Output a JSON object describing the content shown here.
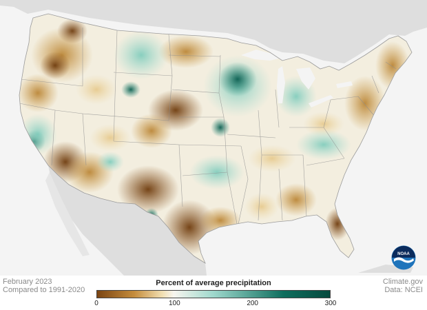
{
  "map": {
    "title": "Percent of average precipitation",
    "period": "February 2023",
    "baseline": "Compared to 1991-2020",
    "credit": "Climate.gov",
    "source": "Data: NCEI",
    "logo_text": "NOAA",
    "colors": {
      "ocean": "#f4f4f4",
      "land": "#dedede",
      "very_dry": "#7a4412",
      "dry": "#c58d3d",
      "slightly_dry": "#f1dfb2",
      "normal": "#f7f5ef",
      "wet": "#9ed8cc",
      "very_wet": "#0f6e5e",
      "wettest": "#064a3f"
    }
  },
  "legend": {
    "ticks": [
      {
        "label": "0",
        "value": 0
      },
      {
        "label": "100",
        "value": 100
      },
      {
        "label": "200",
        "value": 200
      },
      {
        "label": "300",
        "value": 300
      }
    ],
    "range": [
      0,
      300
    ]
  }
}
